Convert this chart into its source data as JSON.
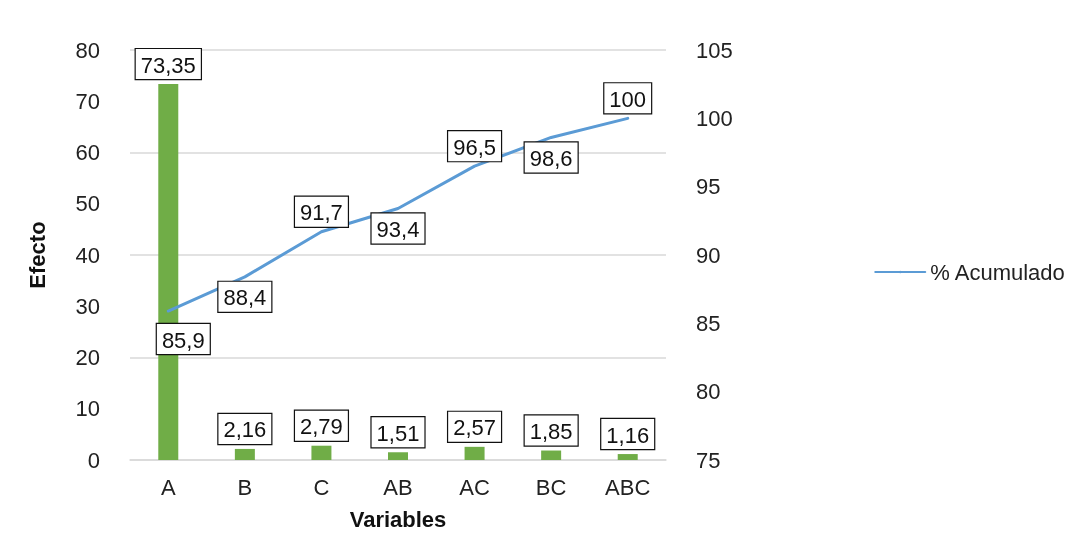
{
  "chart_data": {
    "type": "bar",
    "categories": [
      "A",
      "B",
      "C",
      "AB",
      "AC",
      "BC",
      "ABC"
    ],
    "xlabel": "Variables",
    "ylabel": "Efecto",
    "series": [
      {
        "color": "#70ad47",
        "values": [
          73.35,
          2.16,
          2.79,
          1.51,
          2.57,
          1.85,
          1.16
        ],
        "value_labels": [
          "73,35",
          "2,16",
          "2,79",
          "1,51",
          "2,57",
          "1,85",
          "1,16"
        ]
      },
      {
        "type": "line",
        "name": "% Acumulado",
        "axis": "y2",
        "color": "#5b9bd5",
        "values": [
          85.9,
          88.4,
          91.7,
          93.4,
          96.5,
          98.6,
          100
        ],
        "value_labels": [
          "85,9",
          "88,4",
          "91,7",
          "93,4",
          "96,5",
          "98,6",
          "100"
        ]
      }
    ],
    "ylim": [
      0,
      80
    ],
    "yticks": [
      0,
      10,
      20,
      30,
      40,
      50,
      60,
      70,
      80
    ],
    "y2lim": [
      75,
      105
    ],
    "y2ticks": [
      75,
      80,
      85,
      90,
      95,
      100,
      105
    ],
    "grid": "y",
    "legend": "right",
    "marker": "none",
    "line_style": "solid"
  }
}
